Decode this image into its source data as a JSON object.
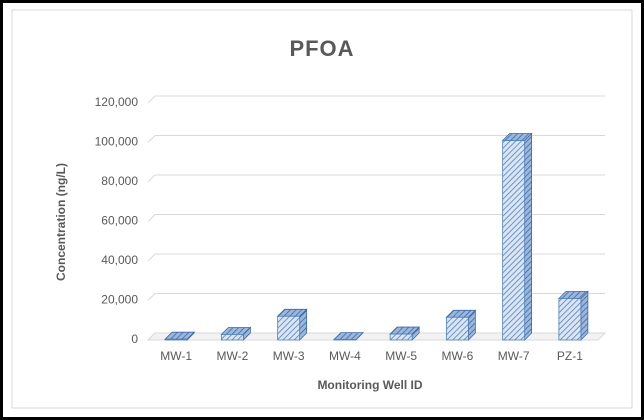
{
  "chart_data": {
    "type": "bar3d",
    "title": "PFOA",
    "x_label": "Monitoring Well ID",
    "y_label": "Concentration (ng/L)",
    "categories": [
      "MW-1",
      "MW-2",
      "MW-3",
      "MW-4",
      "MW-5",
      "MW-6",
      "MW-7",
      "PZ-1"
    ],
    "values": [
      400,
      2800,
      12000,
      200,
      3000,
      11500,
      101000,
      21000
    ],
    "color": "#4f81bd",
    "ylim": [
      0,
      120000
    ],
    "yticks": [
      0,
      {
        "value": 20000,
        "label": "20,000"
      },
      {
        "value": 40000,
        "label": "40,000"
      },
      {
        "value": 60000,
        "label": "60,000"
      },
      {
        "value": 80000,
        "label": "80,000"
      },
      {
        "value": 100000,
        "label": "100,000"
      },
      {
        "value": 120000,
        "label": "120,000"
      }
    ],
    "grid": true
  }
}
